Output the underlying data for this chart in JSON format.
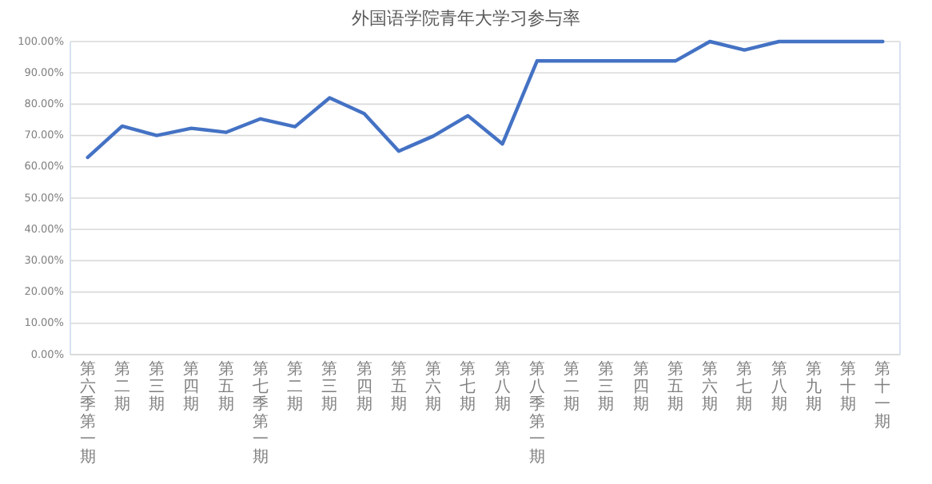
{
  "chart_data": {
    "type": "line",
    "title": "外国语学院青年大学习参与率",
    "categories": [
      "第六季第一期",
      "第二期",
      "第三期",
      "第四期",
      "第五期",
      "第七季第一期",
      "第二期",
      "第三期",
      "第四期",
      "第五期",
      "第六期",
      "第七期",
      "第八期",
      "第八季第一期",
      "第二期",
      "第三期",
      "第四期",
      "第五期",
      "第六期",
      "第七期",
      "第八期",
      "第九期",
      "第十期",
      "第十一期"
    ],
    "series": [
      {
        "color": "#4472c4",
        "values": [
          63,
          73,
          70,
          72.3,
          71,
          75.3,
          72.8,
          82,
          77,
          65,
          69.8,
          76.3,
          67.3,
          93.8,
          93.8,
          93.8,
          93.8,
          93.8,
          100,
          97.3,
          100,
          100,
          100,
          100
        ]
      }
    ],
    "ylim": [
      0,
      100
    ],
    "yticks": [
      {
        "value": 0,
        "label": "0.00%"
      },
      {
        "value": 10,
        "label": "10.00%"
      },
      {
        "value": 20,
        "label": "20.00%"
      },
      {
        "value": 30,
        "label": "30.00%"
      },
      {
        "value": 40,
        "label": "40.00%"
      },
      {
        "value": 50,
        "label": "50.00%"
      },
      {
        "value": 60,
        "label": "60.00%"
      },
      {
        "value": 70,
        "label": "70.00%"
      },
      {
        "value": 80,
        "label": "80.00%"
      },
      {
        "value": 90,
        "label": "90.00%"
      },
      {
        "value": 100,
        "label": "100.00%"
      }
    ],
    "grid": "y"
  }
}
